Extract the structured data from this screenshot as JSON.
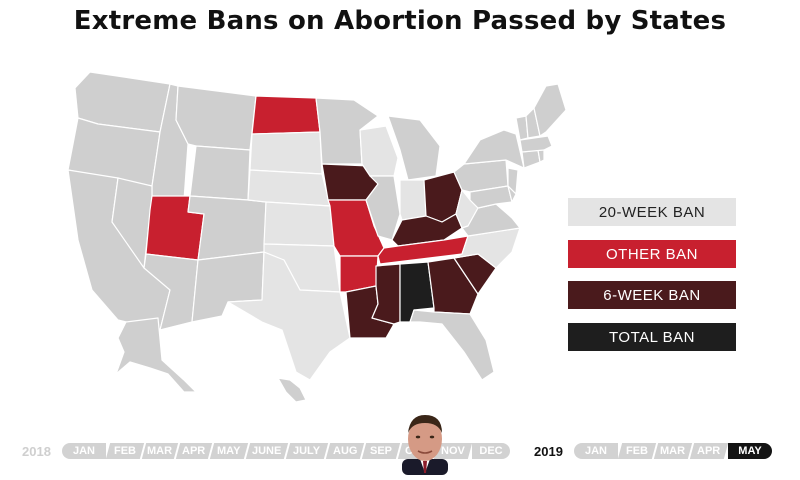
{
  "title": "Extreme Bans on Abortion Passed by States",
  "legend": [
    {
      "label": "20-WEEK BAN",
      "color": "#e4e4e4",
      "text_color": "#222222"
    },
    {
      "label": "OTHER BAN",
      "color": "#c8202f",
      "text_color": "#ffffff"
    },
    {
      "label": "6-WEEK BAN",
      "color": "#4a1a1c",
      "text_color": "#ffffff"
    },
    {
      "label": "TOTAL BAN",
      "color": "#1e1e1e",
      "text_color": "#ffffff"
    }
  ],
  "colors": {
    "no_ban": "#cfcfcf",
    "border": "#ffffff"
  },
  "states": {
    "20-WEEK BAN": [
      "SD",
      "NE",
      "KS",
      "OK",
      "TX",
      "WI",
      "IN",
      "WV",
      "NC"
    ],
    "OTHER BAN": [
      "UT",
      "ND",
      "MO",
      "AR",
      "TN"
    ],
    "6-WEEK BAN": [
      "IA",
      "OH",
      "KY",
      "LA",
      "MS",
      "GA",
      "SC"
    ],
    "TOTAL BAN": [
      "AL"
    ]
  },
  "timeline": {
    "year_start": "2018",
    "months_2018": [
      "JAN",
      "FEB",
      "MAR",
      "APR",
      "MAY",
      "JUNE",
      "JULY",
      "AUG",
      "SEP",
      "OCT",
      "NOV",
      "DEC"
    ],
    "year_current": "2019",
    "months_2019": [
      "JAN",
      "FEB",
      "MAR",
      "APR",
      "MAY"
    ],
    "active": "MAY"
  }
}
